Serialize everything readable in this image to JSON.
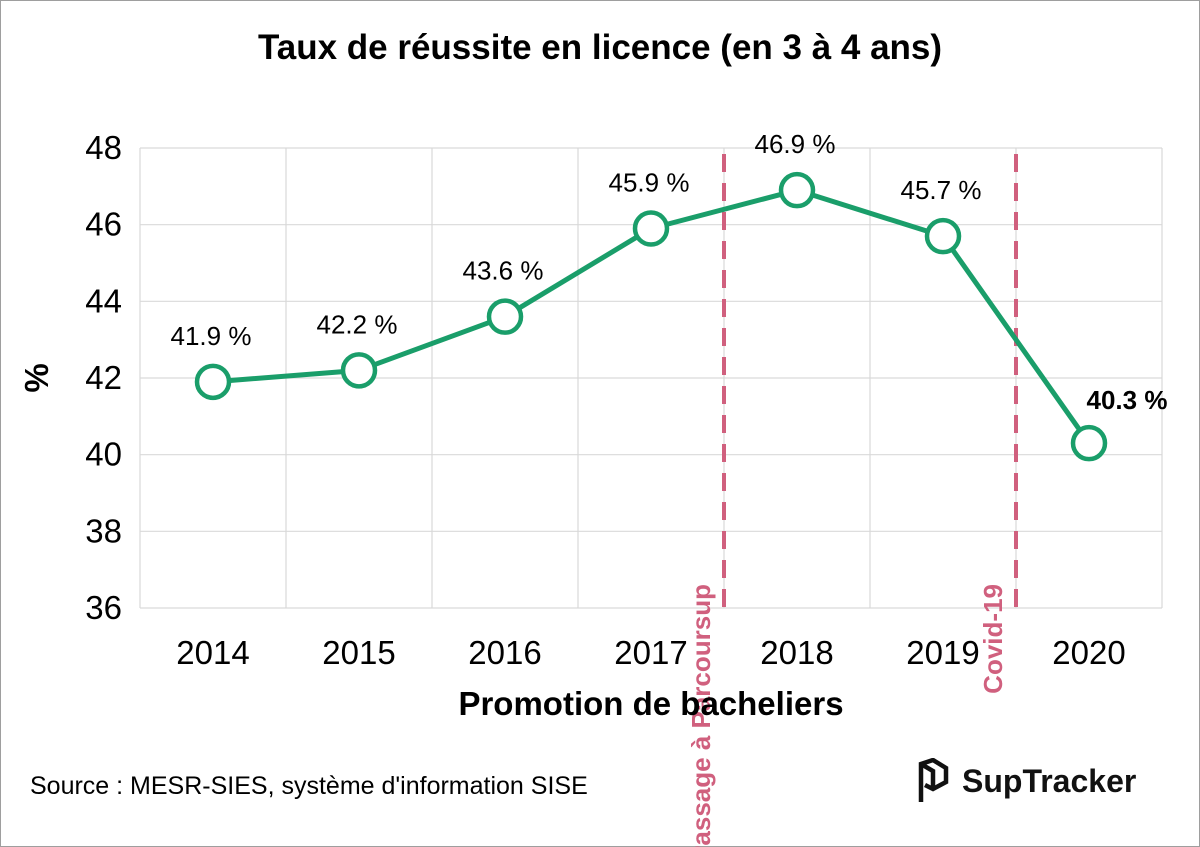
{
  "chart_data": {
    "type": "line",
    "title": "Taux de réussite en licence (en 3 à 4 ans)",
    "xlabel": "Promotion de bacheliers",
    "ylabel": "%",
    "ylim": [
      36,
      48
    ],
    "yticks": [
      "36",
      "38",
      "40",
      "42",
      "44",
      "46",
      "48"
    ],
    "grid": true,
    "categories": [
      "2014",
      "2015",
      "2016",
      "2017",
      "2018",
      "2019",
      "2020"
    ],
    "series": [
      {
        "name": "Taux de réussite",
        "color": "#1a9e6a",
        "values": [
          41.9,
          42.2,
          43.6,
          45.9,
          46.9,
          45.7,
          40.3
        ],
        "labels": [
          "41.9 %",
          "42.2 %",
          "43.6 %",
          "45.9 %",
          "46.9 %",
          "45.7 %",
          "40.3 %"
        ]
      }
    ],
    "annotations": [
      {
        "text": "Passage à Parcoursup",
        "between": [
          "2017",
          "2018"
        ],
        "color": "#d0607e"
      },
      {
        "text": "Covid-19",
        "between": [
          "2019",
          "2020"
        ],
        "color": "#d0607e"
      }
    ]
  },
  "footer": {
    "source": "Source : MESR-SIES, système d'information SISE",
    "brand": "SupTracker",
    "brand_icon": "suptracker-logo-icon"
  }
}
